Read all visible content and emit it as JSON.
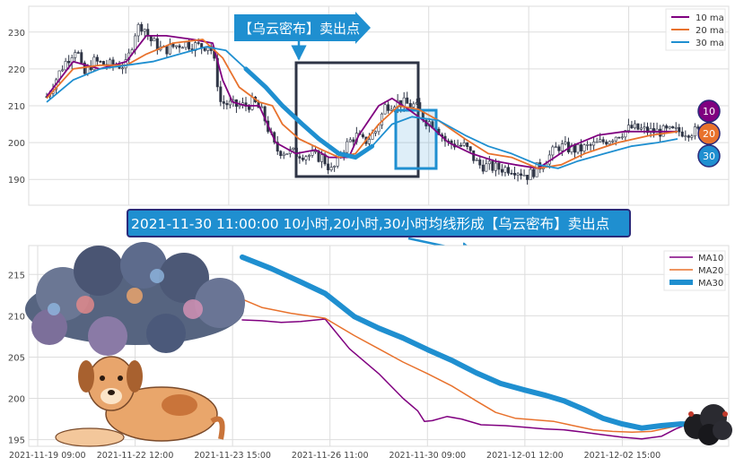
{
  "colors": {
    "ma10": "#800080",
    "ma20": "#e8722d",
    "ma30": "#1f8fd0",
    "candle": "#2e3445",
    "banner_bg": "#1f8fd0",
    "banner_border": "#2a2a7a",
    "grid": "#dddddd",
    "axis_text": "#444444",
    "box_dark": "#2e3445",
    "box_blue": "#1f8fd0"
  },
  "top_chart": {
    "callout": "【乌云密布】卖出点",
    "legend": [
      "10 ma",
      "20 ma",
      "30 ma"
    ],
    "badges": [
      "10",
      "20",
      "30"
    ]
  },
  "banner": {
    "text": "2021-11-30 11:00:00 10小时,20小时,30小时均线形成【乌云密布】卖出点"
  },
  "chart_data": [
    {
      "type": "candlestick",
      "title": "",
      "ylim": [
        183,
        237
      ],
      "yticks": [
        190,
        200,
        210,
        220,
        230
      ],
      "grid": true,
      "legend_position": "top-right",
      "x_index_range": [
        0,
        1000
      ],
      "candles": {
        "count": 210,
        "close_knots": [
          [
            0,
            212.5
          ],
          [
            25,
            221
          ],
          [
            45,
            226
          ],
          [
            55,
            218
          ],
          [
            70,
            222
          ],
          [
            95,
            221
          ],
          [
            120,
            221
          ],
          [
            135,
            231
          ],
          [
            145,
            232
          ],
          [
            155,
            228
          ],
          [
            175,
            225
          ],
          [
            205,
            227
          ],
          [
            235,
            226
          ],
          [
            245,
            227
          ],
          [
            252,
            222
          ],
          [
            262,
            211
          ],
          [
            282,
            210
          ],
          [
            300,
            210
          ],
          [
            312,
            211
          ],
          [
            325,
            208
          ],
          [
            345,
            198
          ],
          [
            380,
            197
          ],
          [
            415,
            196
          ],
          [
            430,
            192
          ],
          [
            445,
            198
          ],
          [
            465,
            202
          ],
          [
            478,
            200
          ],
          [
            495,
            203
          ],
          [
            510,
            210
          ],
          [
            525,
            211
          ],
          [
            555,
            210
          ],
          [
            570,
            206
          ],
          [
            585,
            205
          ],
          [
            602,
            200
          ],
          [
            630,
            199
          ],
          [
            650,
            194
          ],
          [
            680,
            193
          ],
          [
            702,
            193
          ],
          [
            725,
            191
          ],
          [
            745,
            194
          ],
          [
            770,
            199
          ],
          [
            800,
            198
          ],
          [
            835,
            200
          ],
          [
            880,
            204
          ],
          [
            910,
            203
          ],
          [
            940,
            203
          ],
          [
            955,
            203
          ]
        ],
        "noise_seed": 7
      },
      "series": [
        {
          "name": "10 ma",
          "points": [
            [
              0,
              212.5
            ],
            [
              40,
              222
            ],
            [
              80,
              220
            ],
            [
              120,
              222
            ],
            [
              150,
              229
            ],
            [
              180,
              229
            ],
            [
              220,
              228
            ],
            [
              250,
              227
            ],
            [
              265,
              217
            ],
            [
              280,
              211
            ],
            [
              300,
              210
            ],
            [
              320,
              210
            ],
            [
              345,
              200
            ],
            [
              375,
              197
            ],
            [
              405,
              198
            ],
            [
              425,
              196
            ],
            [
              455,
              196
            ],
            [
              470,
              202
            ],
            [
              500,
              210
            ],
            [
              520,
              212
            ],
            [
              545,
              209
            ],
            [
              575,
              205
            ],
            [
              605,
              200
            ],
            [
              640,
              197
            ],
            [
              675,
              195
            ],
            [
              705,
              194
            ],
            [
              740,
              193
            ],
            [
              765,
              196
            ],
            [
              790,
              199
            ],
            [
              830,
              202
            ],
            [
              870,
              203
            ],
            [
              910,
              203
            ],
            [
              950,
              203
            ]
          ]
        },
        {
          "name": "20 ma",
          "points": [
            [
              0,
              212
            ],
            [
              40,
              220
            ],
            [
              80,
              221
            ],
            [
              120,
              221
            ],
            [
              150,
              224
            ],
            [
              190,
              227
            ],
            [
              235,
              228
            ],
            [
              265,
              223
            ],
            [
              290,
              215
            ],
            [
              320,
              211
            ],
            [
              340,
              210
            ],
            [
              355,
              205
            ],
            [
              380,
              201
            ],
            [
              415,
              198
            ],
            [
              440,
              196
            ],
            [
              465,
              197
            ],
            [
              500,
              205
            ],
            [
              530,
              210
            ],
            [
              560,
              209
            ],
            [
              590,
              206
            ],
            [
              630,
              201
            ],
            [
              665,
              197
            ],
            [
              700,
              196
            ],
            [
              740,
              193
            ],
            [
              775,
              194
            ],
            [
              810,
              197
            ],
            [
              860,
              200
            ],
            [
              910,
              202
            ],
            [
              950,
              203
            ]
          ]
        },
        {
          "name": "30 ma",
          "points": [
            [
              0,
              211
            ],
            [
              40,
              217
            ],
            [
              80,
              220
            ],
            [
              120,
              221
            ],
            [
              160,
              222
            ],
            [
              200,
              224
            ],
            [
              240,
              226
            ],
            [
              270,
              225
            ],
            [
              300,
              220
            ],
            [
              330,
              215
            ],
            [
              355,
              210
            ],
            [
              385,
              205
            ],
            [
              410,
              201
            ],
            [
              440,
              197
            ],
            [
              465,
              196
            ],
            [
              490,
              199
            ],
            [
              520,
              205
            ],
            [
              550,
              207
            ],
            [
              590,
              206
            ],
            [
              630,
              202
            ],
            [
              665,
              199
            ],
            [
              700,
              197
            ],
            [
              740,
              194
            ],
            [
              770,
              193
            ],
            [
              800,
              195
            ],
            [
              840,
              197
            ],
            [
              880,
              199
            ],
            [
              920,
              200
            ],
            [
              950,
              201
            ]
          ]
        }
      ]
    },
    {
      "type": "line",
      "title": "",
      "xlabel": "",
      "ylabel": "",
      "ylim": [
        194.2,
        218.5
      ],
      "yticks": [
        195,
        200,
        205,
        210,
        215
      ],
      "x_tick_labels": [
        "2021-11-19 09:00",
        "2021-11-22 12:00",
        "2021-11-23 15:00",
        "2021-11-26 11:00",
        "2021-11-30 09:00",
        "2021-12-01 12:00",
        "2021-12-02 15:00"
      ],
      "grid": true,
      "legend_position": "top-right",
      "legend": [
        "MA10",
        "MA20",
        "MA30"
      ],
      "x_range": [
        0,
        7
      ],
      "series": [
        {
          "name": "MA10",
          "points": [
            [
              2.1,
              209.5
            ],
            [
              2.3,
              209.4
            ],
            [
              2.5,
              209.2
            ],
            [
              2.7,
              209.3
            ],
            [
              2.95,
              209.6
            ],
            [
              3.2,
              206
            ],
            [
              3.5,
              203
            ],
            [
              3.75,
              200
            ],
            [
              3.9,
              198.5
            ],
            [
              3.97,
              197.2
            ],
            [
              4.05,
              197.3
            ],
            [
              4.2,
              197.8
            ],
            [
              4.35,
              197.5
            ],
            [
              4.55,
              196.8
            ],
            [
              4.8,
              196.7
            ],
            [
              5.0,
              196.5
            ],
            [
              5.2,
              196.3
            ],
            [
              5.4,
              196.2
            ],
            [
              5.6,
              195.9
            ],
            [
              5.8,
              195.6
            ],
            [
              6.0,
              195.3
            ],
            [
              6.2,
              195.1
            ],
            [
              6.4,
              195.4
            ],
            [
              6.55,
              196.3
            ],
            [
              6.7,
              197
            ],
            [
              6.9,
              196.8
            ],
            [
              7.0,
              196.6
            ]
          ]
        },
        {
          "name": "MA20",
          "points": [
            [
              2.1,
              212
            ],
            [
              2.3,
              211
            ],
            [
              2.6,
              210.3
            ],
            [
              2.95,
              209.7
            ],
            [
              3.25,
              207.6
            ],
            [
              3.5,
              206
            ],
            [
              3.75,
              204.4
            ],
            [
              4.0,
              203
            ],
            [
              4.25,
              201.5
            ],
            [
              4.5,
              199.7
            ],
            [
              4.7,
              198.3
            ],
            [
              4.9,
              197.6
            ],
            [
              5.1,
              197.4
            ],
            [
              5.3,
              197.2
            ],
            [
              5.5,
              196.7
            ],
            [
              5.7,
              196.2
            ],
            [
              5.9,
              196
            ],
            [
              6.1,
              195.9
            ],
            [
              6.3,
              196
            ],
            [
              6.5,
              196.5
            ],
            [
              6.7,
              197.1
            ],
            [
              6.85,
              197.3
            ],
            [
              7.0,
              197.2
            ]
          ]
        },
        {
          "name": "MA30",
          "points": [
            [
              2.1,
              217.1
            ],
            [
              2.4,
              215.7
            ],
            [
              2.7,
              214.1
            ],
            [
              2.95,
              212.7
            ],
            [
              3.25,
              209.9
            ],
            [
              3.5,
              208.5
            ],
            [
              3.75,
              207.3
            ],
            [
              4.0,
              205.9
            ],
            [
              4.25,
              204.6
            ],
            [
              4.5,
              203.1
            ],
            [
              4.75,
              201.8
            ],
            [
              5.0,
              201
            ],
            [
              5.2,
              200.4
            ],
            [
              5.4,
              199.7
            ],
            [
              5.6,
              198.7
            ],
            [
              5.8,
              197.6
            ],
            [
              6.0,
              196.9
            ],
            [
              6.2,
              196.4
            ],
            [
              6.4,
              196.7
            ],
            [
              6.6,
              196.9
            ],
            [
              6.8,
              196.8
            ],
            [
              7.0,
              196.6
            ]
          ]
        }
      ]
    }
  ]
}
